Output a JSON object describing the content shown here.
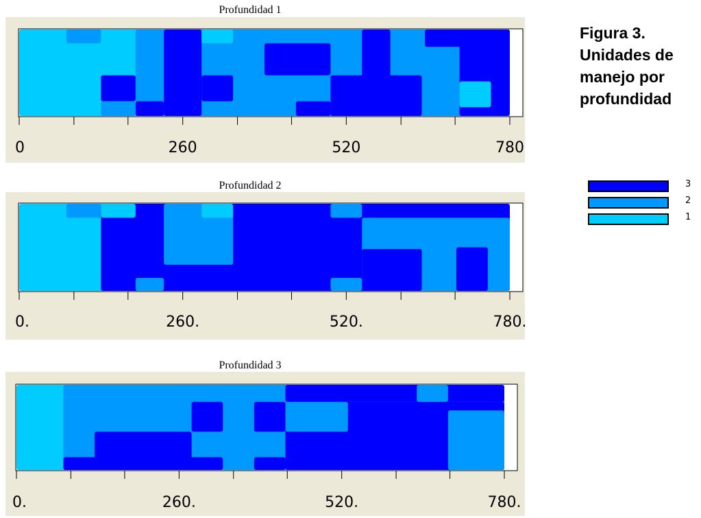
{
  "figure": {
    "title_lines": [
      "Figura 3.",
      "Unidades de",
      "manejo por",
      "profundidad"
    ]
  },
  "colors": {
    "unit_1": "#00ccff",
    "unit_2": "#0099ff",
    "unit_3": "#0000ff",
    "panel_bg": "#ece9d8"
  },
  "legend": {
    "items": [
      {
        "label": "3",
        "unit": 3
      },
      {
        "label": "2",
        "unit": 2
      },
      {
        "label": "1",
        "unit": 1
      }
    ]
  },
  "chart_data": [
    {
      "type": "heatmap",
      "title": "Profundidad 1",
      "xlim": [
        0,
        780
      ],
      "tick_labels": [
        "0",
        "260",
        "520",
        "780"
      ],
      "major_ticks": [
        0,
        260,
        520,
        780
      ],
      "minor_ticks": [
        87,
        173,
        347,
        433,
        607,
        693
      ],
      "regions": [
        {
          "unit": 1,
          "x": [
            0,
            780
          ],
          "y": [
            0,
            1
          ]
        },
        {
          "unit": 2,
          "x": [
            75,
            130
          ],
          "y": [
            0,
            0.16
          ]
        },
        {
          "unit": 2,
          "x": [
            185,
            780
          ],
          "y": [
            0,
            1
          ]
        },
        {
          "unit": 3,
          "x": [
            230,
            290
          ],
          "y": [
            0,
            1
          ]
        },
        {
          "unit": 1,
          "x": [
            290,
            340
          ],
          "y": [
            0,
            0.16
          ]
        },
        {
          "unit": 3,
          "x": [
            390,
            495
          ],
          "y": [
            0.16,
            0.53
          ]
        },
        {
          "unit": 3,
          "x": [
            545,
            590
          ],
          "y": [
            0,
            1
          ]
        },
        {
          "unit": 3,
          "x": [
            645,
            780
          ],
          "y": [
            0,
            0.2
          ]
        },
        {
          "unit": 3,
          "x": [
            700,
            780
          ],
          "y": [
            0,
            1
          ]
        },
        {
          "unit": 3,
          "x": [
            130,
            185
          ],
          "y": [
            0.53,
            0.83
          ]
        },
        {
          "unit": 3,
          "x": [
            290,
            340
          ],
          "y": [
            0.53,
            0.83
          ]
        },
        {
          "unit": 3,
          "x": [
            495,
            640
          ],
          "y": [
            0.53,
            1
          ]
        },
        {
          "unit": 3,
          "x": [
            440,
            495
          ],
          "y": [
            0.83,
            1
          ]
        },
        {
          "unit": 3,
          "x": [
            185,
            230
          ],
          "y": [
            0.83,
            1
          ]
        },
        {
          "unit": 2,
          "x": [
            130,
            185
          ],
          "y": [
            0.83,
            1
          ]
        },
        {
          "unit": 1,
          "x": [
            700,
            750
          ],
          "y": [
            0.6,
            0.9
          ]
        }
      ]
    },
    {
      "type": "heatmap",
      "title": "Profundidad 2",
      "xlim": [
        0,
        780
      ],
      "tick_labels": [
        "0.",
        "260.",
        "520.",
        "780."
      ],
      "major_ticks": [
        0,
        260,
        520,
        780
      ],
      "minor_ticks": [
        87,
        173,
        347,
        433,
        607,
        693
      ],
      "regions": [
        {
          "unit": 1,
          "x": [
            0,
            780
          ],
          "y": [
            0,
            1
          ]
        },
        {
          "unit": 2,
          "x": [
            75,
            130
          ],
          "y": [
            0,
            0.16
          ]
        },
        {
          "unit": 3,
          "x": [
            130,
            780
          ],
          "y": [
            0,
            1
          ]
        },
        {
          "unit": 2,
          "x": [
            230,
            340
          ],
          "y": [
            0,
            0.7
          ]
        },
        {
          "unit": 1,
          "x": [
            290,
            340
          ],
          "y": [
            0,
            0.16
          ]
        },
        {
          "unit": 2,
          "x": [
            495,
            545
          ],
          "y": [
            0,
            0.16
          ]
        },
        {
          "unit": 2,
          "x": [
            545,
            780
          ],
          "y": [
            0.16,
            1
          ]
        },
        {
          "unit": 3,
          "x": [
            545,
            640
          ],
          "y": [
            0.52,
            1
          ]
        },
        {
          "unit": 3,
          "x": [
            695,
            745
          ],
          "y": [
            0.5,
            1
          ]
        },
        {
          "unit": 2,
          "x": [
            185,
            230
          ],
          "y": [
            0.85,
            1
          ]
        },
        {
          "unit": 2,
          "x": [
            495,
            545
          ],
          "y": [
            0.85,
            1
          ]
        },
        {
          "unit": 1,
          "x": [
            130,
            185
          ],
          "y": [
            0,
            0.16
          ]
        }
      ]
    },
    {
      "type": "heatmap",
      "title": "Profundidad 3",
      "xlim": [
        0,
        780
      ],
      "tick_labels": [
        "0.",
        "260.",
        "520.",
        "780."
      ],
      "major_ticks": [
        0,
        260,
        520,
        780
      ],
      "minor_ticks": [
        87,
        173,
        347,
        433,
        607,
        693
      ],
      "regions": [
        {
          "unit": 1,
          "x": [
            0,
            780
          ],
          "y": [
            0,
            1
          ]
        },
        {
          "unit": 2,
          "x": [
            75,
            780
          ],
          "y": [
            0,
            1
          ]
        },
        {
          "unit": 3,
          "x": [
            430,
            780
          ],
          "y": [
            0,
            0.2
          ]
        },
        {
          "unit": 3,
          "x": [
            430,
            780
          ],
          "y": [
            0.2,
            1
          ]
        },
        {
          "unit": 2,
          "x": [
            430,
            530
          ],
          "y": [
            0.2,
            0.55
          ]
        },
        {
          "unit": 2,
          "x": [
            640,
            690
          ],
          "y": [
            0,
            0.2
          ]
        },
        {
          "unit": 2,
          "x": [
            690,
            780
          ],
          "y": [
            0.3,
            1
          ]
        },
        {
          "unit": 3,
          "x": [
            280,
            330
          ],
          "y": [
            0.2,
            0.55
          ]
        },
        {
          "unit": 3,
          "x": [
            380,
            430
          ],
          "y": [
            0.2,
            0.55
          ]
        },
        {
          "unit": 3,
          "x": [
            125,
            280
          ],
          "y": [
            0.55,
            1
          ]
        },
        {
          "unit": 3,
          "x": [
            75,
            330
          ],
          "y": [
            0.85,
            1
          ]
        },
        {
          "unit": 3,
          "x": [
            380,
            430
          ],
          "y": [
            0.85,
            1
          ]
        }
      ]
    }
  ]
}
